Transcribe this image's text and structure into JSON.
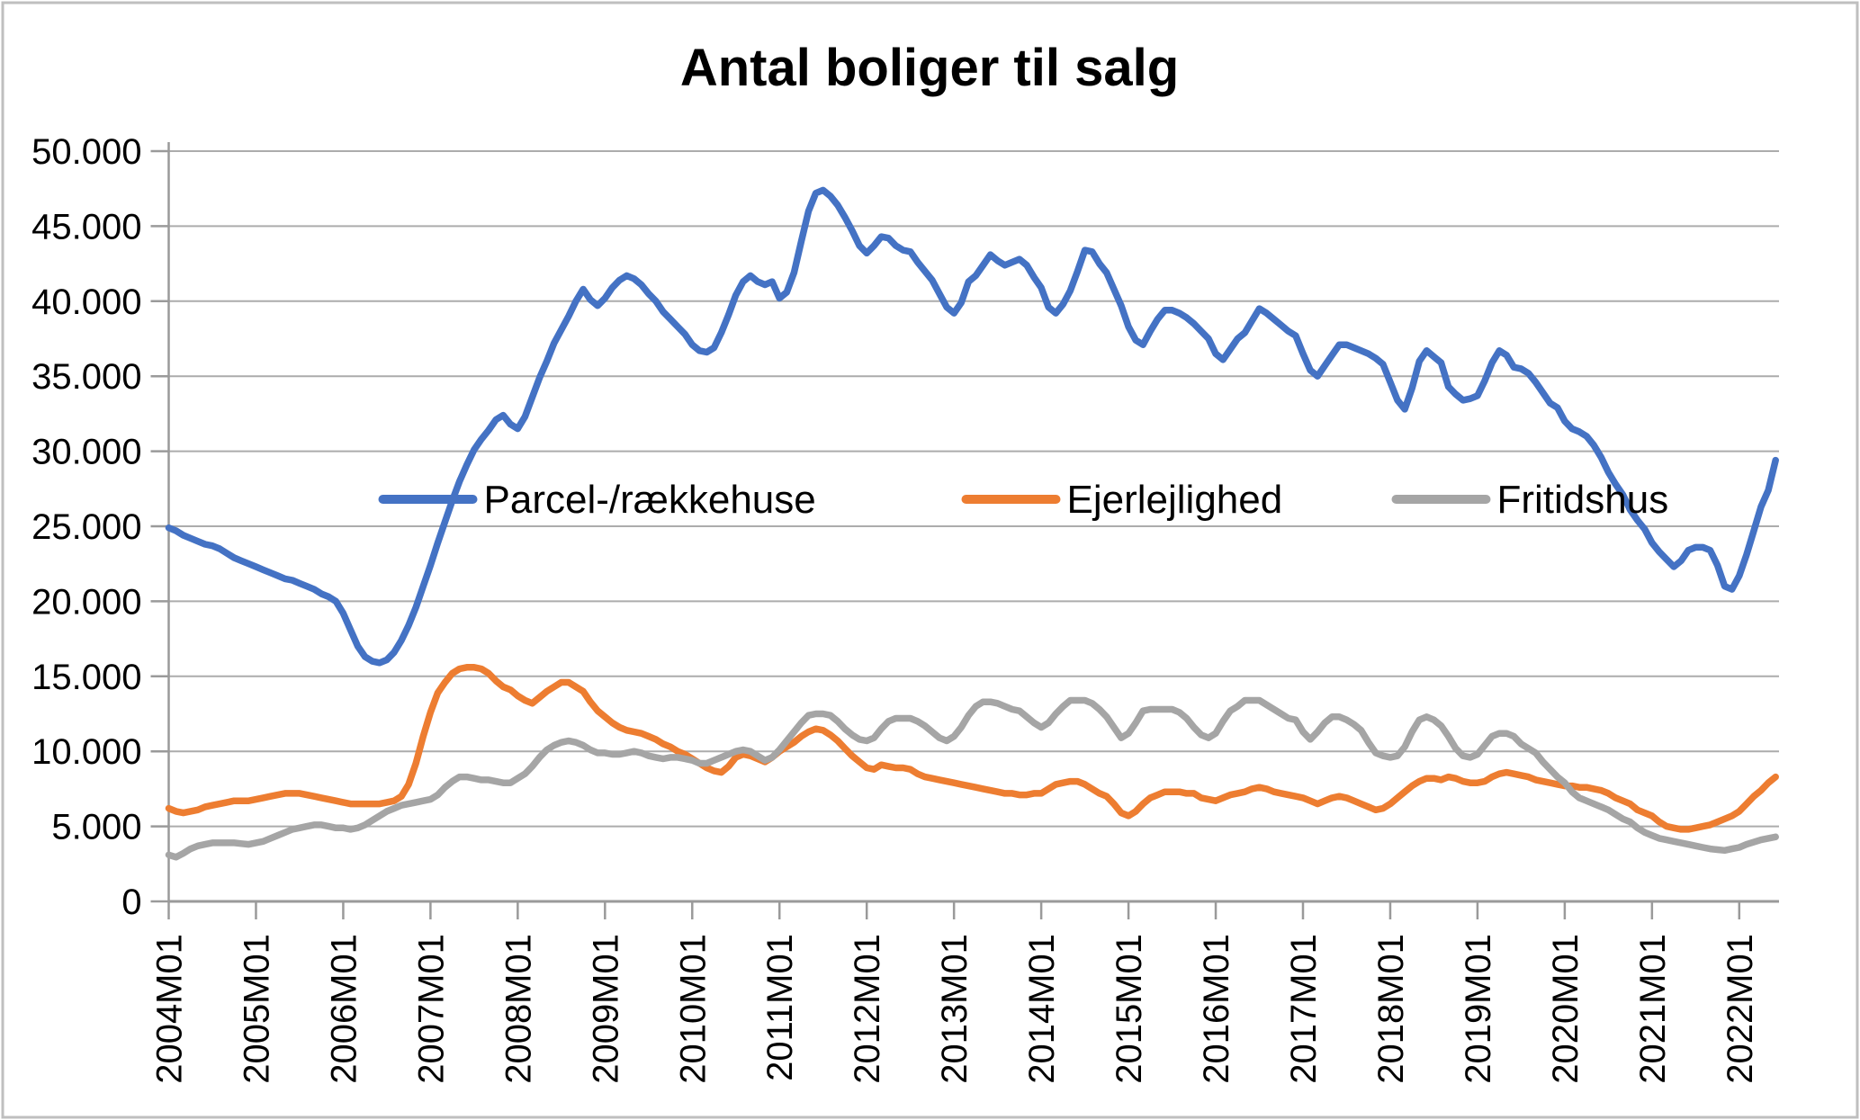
{
  "chart_data": {
    "type": "line",
    "title": "Antal boliger til salg",
    "xlabel": "",
    "ylabel": "",
    "ylim": [
      0,
      50000
    ],
    "grid": "horizontal",
    "legend_position": "inside-middle",
    "y_ticks": [
      {
        "value": 0,
        "label": "0"
      },
      {
        "value": 5000,
        "label": "5.000"
      },
      {
        "value": 10000,
        "label": "10.000"
      },
      {
        "value": 15000,
        "label": "15.000"
      },
      {
        "value": 20000,
        "label": "20.000"
      },
      {
        "value": 25000,
        "label": "25.000"
      },
      {
        "value": 30000,
        "label": "30.000"
      },
      {
        "value": 35000,
        "label": "35.000"
      },
      {
        "value": 40000,
        "label": "40.000"
      },
      {
        "value": 45000,
        "label": "45.000"
      },
      {
        "value": 50000,
        "label": "50.000"
      }
    ],
    "x_tick_labels": [
      "2004M01",
      "2005M01",
      "2006M01",
      "2007M01",
      "2008M01",
      "2009M01",
      "2010M01",
      "2011M01",
      "2012M01",
      "2013M01",
      "2014M01",
      "2015M01",
      "2016M01",
      "2017M01",
      "2018M01",
      "2019M01",
      "2020M01",
      "2021M01",
      "2022M01"
    ],
    "months_per_tick": 12,
    "x_start_label": "2004M01",
    "x_end_label": "2022M06",
    "series": [
      {
        "id": "parcel",
        "name": "Parcel-/rækkehuse",
        "color": "#4472C4",
        "values": [
          24900,
          24700,
          24400,
          24200,
          24000,
          23800,
          23700,
          23500,
          23200,
          22900,
          22700,
          22500,
          22300,
          22100,
          21900,
          21700,
          21500,
          21400,
          21200,
          21000,
          20800,
          20500,
          20300,
          20000,
          19200,
          18100,
          17000,
          16300,
          16000,
          15900,
          16100,
          16600,
          17400,
          18400,
          19600,
          21000,
          22400,
          23900,
          25300,
          26700,
          28000,
          29100,
          30100,
          30800,
          31400,
          32100,
          32400,
          31800,
          31500,
          32300,
          33600,
          34900,
          36000,
          37200,
          38100,
          39000,
          40000,
          40800,
          40100,
          39700,
          40200,
          40900,
          41400,
          41700,
          41500,
          41100,
          40500,
          40000,
          39300,
          38800,
          38300,
          37800,
          37100,
          36700,
          36600,
          36900,
          37900,
          39100,
          40400,
          41300,
          41700,
          41300,
          41100,
          41300,
          40200,
          40600,
          41900,
          44000,
          46000,
          47200,
          47400,
          47000,
          46400,
          45600,
          44700,
          43700,
          43200,
          43700,
          44300,
          44200,
          43700,
          43400,
          43300,
          42600,
          42000,
          41400,
          40500,
          39600,
          39200,
          39900,
          41300,
          41700,
          42400,
          43100,
          42700,
          42400,
          42600,
          42800,
          42400,
          41600,
          40900,
          39600,
          39200,
          39800,
          40700,
          42000,
          43400,
          43300,
          42500,
          41900,
          40800,
          39700,
          38300,
          37400,
          37100,
          38000,
          38800,
          39400,
          39400,
          39200,
          38900,
          38500,
          38000,
          37500,
          36500,
          36100,
          36800,
          37500,
          37900,
          38700,
          39500,
          39200,
          38800,
          38400,
          38000,
          37700,
          36500,
          35400,
          35000,
          35700,
          36400,
          37100,
          37100,
          36900,
          36700,
          36500,
          36200,
          35800,
          34600,
          33400,
          32800,
          34200,
          36000,
          36700,
          36300,
          35900,
          34300,
          33800,
          33400,
          33500,
          33700,
          34700,
          35900,
          36700,
          36400,
          35600,
          35500,
          35200,
          34600,
          33900,
          33200,
          32900,
          32000,
          31500,
          31300,
          31000,
          30400,
          29600,
          28600,
          27800,
          27100,
          26100,
          25400,
          24800,
          23900,
          23300,
          22800,
          22300,
          22700,
          23400,
          23600,
          23600,
          23400,
          22400,
          21000,
          20800,
          21700,
          23100,
          24700,
          26300,
          27400,
          29400
        ]
      },
      {
        "id": "ejerlejlighed",
        "name": "Ejerlejlighed",
        "color": "#ED7D31",
        "values": [
          6200,
          6000,
          5900,
          6000,
          6100,
          6300,
          6400,
          6500,
          6600,
          6700,
          6700,
          6700,
          6800,
          6900,
          7000,
          7100,
          7200,
          7200,
          7200,
          7100,
          7000,
          6900,
          6800,
          6700,
          6600,
          6500,
          6500,
          6500,
          6500,
          6500,
          6600,
          6700,
          7000,
          7800,
          9200,
          11000,
          12600,
          13900,
          14600,
          15200,
          15500,
          15600,
          15600,
          15500,
          15200,
          14700,
          14300,
          14100,
          13700,
          13400,
          13200,
          13600,
          14000,
          14300,
          14600,
          14600,
          14300,
          14000,
          13300,
          12700,
          12300,
          11900,
          11600,
          11400,
          11300,
          11200,
          11000,
          10800,
          10500,
          10300,
          10000,
          9800,
          9500,
          9200,
          8900,
          8700,
          8600,
          9000,
          9600,
          9800,
          9700,
          9500,
          9300,
          9600,
          10000,
          10300,
          10600,
          11000,
          11300,
          11500,
          11400,
          11100,
          10700,
          10200,
          9700,
          9300,
          8900,
          8800,
          9100,
          9000,
          8900,
          8900,
          8800,
          8500,
          8300,
          8200,
          8100,
          8000,
          7900,
          7800,
          7700,
          7600,
          7500,
          7400,
          7300,
          7200,
          7200,
          7100,
          7100,
          7200,
          7200,
          7500,
          7800,
          7900,
          8000,
          8000,
          7800,
          7500,
          7200,
          7000,
          6500,
          5900,
          5700,
          6000,
          6500,
          6900,
          7100,
          7300,
          7300,
          7300,
          7200,
          7200,
          6900,
          6800,
          6700,
          6900,
          7100,
          7200,
          7300,
          7500,
          7600,
          7500,
          7300,
          7200,
          7100,
          7000,
          6900,
          6700,
          6500,
          6700,
          6900,
          7000,
          6900,
          6700,
          6500,
          6300,
          6100,
          6200,
          6500,
          6900,
          7300,
          7700,
          8000,
          8200,
          8200,
          8100,
          8300,
          8200,
          8000,
          7900,
          7900,
          8000,
          8300,
          8500,
          8600,
          8500,
          8400,
          8300,
          8100,
          8000,
          7900,
          7800,
          7700,
          7700,
          7600,
          7600,
          7500,
          7400,
          7200,
          6900,
          6700,
          6500,
          6100,
          5900,
          5700,
          5300,
          5000,
          4900,
          4800,
          4800,
          4900,
          5000,
          5100,
          5300,
          5500,
          5700,
          6000,
          6500,
          7000,
          7400,
          7900,
          8300
        ]
      },
      {
        "id": "fritidshus",
        "name": "Fritidshus",
        "color": "#A5A5A5",
        "values": [
          3100,
          2950,
          3200,
          3500,
          3700,
          3800,
          3900,
          3900,
          3900,
          3900,
          3850,
          3800,
          3900,
          4000,
          4200,
          4400,
          4600,
          4800,
          4900,
          5000,
          5100,
          5100,
          5000,
          4900,
          4900,
          4800,
          4900,
          5100,
          5400,
          5700,
          6000,
          6200,
          6400,
          6500,
          6600,
          6700,
          6800,
          7100,
          7600,
          8000,
          8300,
          8300,
          8200,
          8100,
          8100,
          8000,
          7900,
          7900,
          8200,
          8500,
          9000,
          9600,
          10100,
          10400,
          10600,
          10700,
          10600,
          10400,
          10100,
          9900,
          9900,
          9800,
          9800,
          9900,
          10000,
          9900,
          9700,
          9600,
          9500,
          9600,
          9600,
          9500,
          9400,
          9200,
          9200,
          9400,
          9600,
          9800,
          10000,
          10100,
          10000,
          9700,
          9400,
          9600,
          10100,
          10700,
          11300,
          11900,
          12400,
          12500,
          12500,
          12400,
          12000,
          11500,
          11100,
          10800,
          10700,
          10900,
          11500,
          12000,
          12200,
          12200,
          12200,
          12000,
          11700,
          11300,
          10900,
          10700,
          11000,
          11600,
          12400,
          13000,
          13300,
          13300,
          13200,
          13000,
          12800,
          12700,
          12300,
          11900,
          11600,
          11900,
          12500,
          13000,
          13400,
          13400,
          13400,
          13200,
          12800,
          12300,
          11600,
          10900,
          11200,
          11900,
          12700,
          12800,
          12800,
          12800,
          12800,
          12600,
          12200,
          11600,
          11100,
          10900,
          11200,
          12000,
          12700,
          13000,
          13400,
          13400,
          13400,
          13100,
          12800,
          12500,
          12200,
          12100,
          11300,
          10800,
          11300,
          11900,
          12300,
          12300,
          12100,
          11800,
          11400,
          10600,
          9900,
          9700,
          9600,
          9700,
          10300,
          11300,
          12100,
          12300,
          12100,
          11700,
          11000,
          10200,
          9700,
          9600,
          9800,
          10400,
          11000,
          11200,
          11200,
          11000,
          10500,
          10200,
          9900,
          9300,
          8800,
          8300,
          7900,
          7300,
          6900,
          6700,
          6500,
          6300,
          6100,
          5800,
          5500,
          5300,
          4900,
          4600,
          4400,
          4200,
          4100,
          4000,
          3900,
          3800,
          3700,
          3600,
          3500,
          3450,
          3400,
          3500,
          3600,
          3800,
          3950,
          4100,
          4200,
          4300
        ]
      }
    ],
    "colors": {
      "gridline": "#ACACAC",
      "axis": "#9A9A9A",
      "frame": "#BFBFBF",
      "background": "#FFFFFF",
      "text": "#000000"
    }
  }
}
